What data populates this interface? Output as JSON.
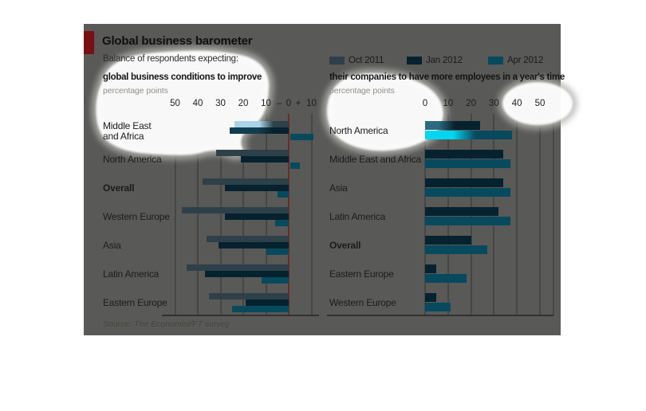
{
  "header": {
    "title": "Global business barometer",
    "subtitle": "Balance of respondents expecting:"
  },
  "legend": [
    {
      "label": "Oct 2011",
      "color": "#2e4049"
    },
    {
      "label": "Jan 2012",
      "color": "#06222e"
    },
    {
      "label": "Apr 2012",
      "color": "#074a5e"
    }
  ],
  "source": {
    "prefix": "Source: ",
    "publication": "The Economist/FT",
    "suffix": " survey"
  },
  "colors": {
    "panel_bg": "#595957",
    "accent_red": "#791013",
    "zero_line_red": "#6f2b24",
    "gridline": "#464644",
    "highlight_cyan": "#00d6f0",
    "highlight_light_blue": "#a9d4e8",
    "blob_fill": "#ffffff"
  },
  "chart_data": [
    {
      "type": "bar",
      "orientation": "horizontal",
      "title": "global business conditions to improve",
      "unit_label": "percentage points",
      "xlim": [
        -50,
        12
      ],
      "grid": "vertical",
      "legend_position": "top-right-shared",
      "categories": [
        "Middle East and Africa",
        "North America",
        "Overall",
        "Western Europe",
        "Asia",
        "Latin America",
        "Eastern Europe"
      ],
      "category_lines": [
        [
          "Middle East",
          "and Africa"
        ],
        [
          "North America"
        ],
        [
          "Overall"
        ],
        [
          "Western Europe"
        ],
        [
          "Asia"
        ],
        [
          "Latin America"
        ],
        [
          "Eastern Europe"
        ]
      ],
      "emphasis": [
        0,
        0,
        1,
        0,
        0,
        0,
        0
      ],
      "series": [
        {
          "name": "Oct 2011",
          "color": "#2e4049",
          "values": [
            -24,
            -32,
            -38,
            -47,
            -36,
            -45,
            -35
          ]
        },
        {
          "name": "Jan 2012",
          "color": "#06222e",
          "values": [
            -26,
            -21,
            -28,
            -28,
            -31,
            -37,
            -19
          ]
        },
        {
          "name": "Apr 2012",
          "color": "#074a5e",
          "values": [
            11,
            5,
            -5,
            -6,
            -10,
            -12,
            -25
          ]
        }
      ],
      "ticks": [
        {
          "label": "50",
          "u": -50,
          "g": 1
        },
        {
          "label": "40",
          "u": -40,
          "g": 1
        },
        {
          "label": "30",
          "u": -30,
          "g": 1
        },
        {
          "label": "20",
          "u": -20,
          "g": 1
        },
        {
          "label": "10",
          "u": -10,
          "g": 1
        },
        {
          "label": "–",
          "u": -4.2,
          "g": 0
        },
        {
          "label": "0",
          "u": 0,
          "g": 0
        },
        {
          "label": "+",
          "u": 4.2,
          "g": 0
        },
        {
          "label": "10",
          "u": 10,
          "g": 1
        }
      ]
    },
    {
      "type": "bar",
      "orientation": "horizontal",
      "title": "their companies to have more employees in a year's time",
      "unit_label": "percentage points",
      "xlim": [
        0,
        50
      ],
      "grid": "vertical",
      "legend_position": "top-right-shared",
      "categories": [
        "North America",
        "Middle East and Africa",
        "Asia",
        "Latin America",
        "Overall",
        "Eastern Europe",
        "Western Europe"
      ],
      "category_lines": [
        [
          "North America"
        ],
        [
          "Middle East and Africa"
        ],
        [
          "Asia"
        ],
        [
          "Latin America"
        ],
        [
          "Overall"
        ],
        [
          "Eastern Europe"
        ],
        [
          "Western Europe"
        ]
      ],
      "emphasis": [
        0,
        0,
        0,
        0,
        1,
        0,
        0
      ],
      "series": [
        {
          "name": "Jan 2012",
          "color": "#06222e",
          "values": [
            24,
            34,
            34,
            32,
            20,
            5,
            5
          ]
        },
        {
          "name": "Apr 2012",
          "color": "#074a5e",
          "values": [
            38,
            37,
            37,
            37,
            27,
            18,
            11
          ]
        }
      ],
      "ticks": [
        {
          "label": "0",
          "u": 0,
          "g": 1
        },
        {
          "label": "10",
          "u": 10,
          "g": 1
        },
        {
          "label": "20",
          "u": 20,
          "g": 1
        },
        {
          "label": "30",
          "u": 30,
          "g": 1
        },
        {
          "label": "40",
          "u": 40,
          "g": 1
        },
        {
          "label": "50",
          "u": 50,
          "g": 1
        },
        {
          "label": "",
          "u": 56,
          "g": 1
        }
      ]
    }
  ],
  "overlay": {
    "highlighted_bars": [
      {
        "chart": 0,
        "row": 0,
        "series": 0,
        "inner": "#a9d4e8",
        "solid": 46,
        "fade": 72
      },
      {
        "chart": 0,
        "row": 0,
        "series": 1,
        "inner": "#123d50",
        "solid": 48,
        "fade": 74
      },
      {
        "chart": 1,
        "row": 0,
        "series": 0,
        "inner": "#2e6a82",
        "solid": 24,
        "fade": 54
      },
      {
        "chart": 1,
        "row": 0,
        "series": 1,
        "inner": "#00d6f0",
        "solid": 32,
        "fade": 58
      }
    ]
  }
}
